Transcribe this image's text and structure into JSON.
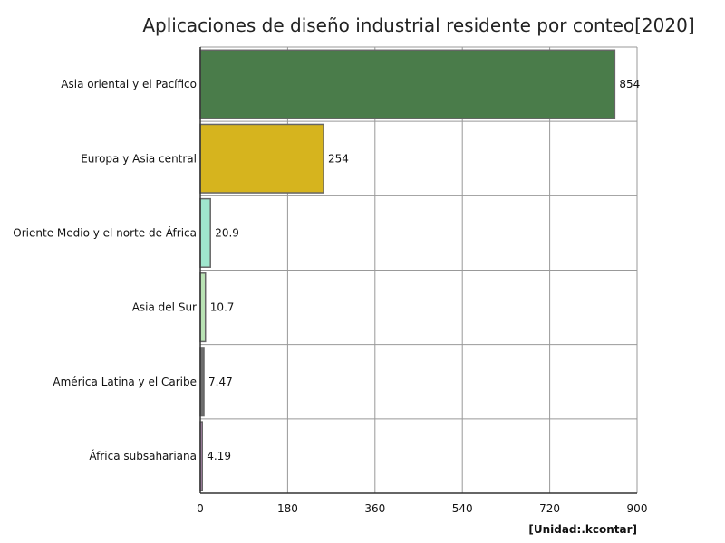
{
  "chart_data": {
    "type": "bar",
    "orientation": "horizontal",
    "title": "Aplicaciones de diseño industrial residente por conteo[2020]",
    "unit_label": "[Unidad:.kcontar]",
    "categories": [
      "Asia oriental y el Pacífico",
      "Europa y Asia central",
      "Oriente Medio y el norte de África",
      "Asia del Sur",
      "América Latina y el Caribe",
      "África subsahariana"
    ],
    "values": [
      854,
      254,
      20.9,
      10.7,
      7.47,
      4.19
    ],
    "value_labels": [
      "854",
      "254",
      "20.9",
      "10.7",
      "7.47",
      "4.19"
    ],
    "colors": [
      "#4a7c4a",
      "#d6b41e",
      "#9fe6cd",
      "#b9e3b4",
      "#6e6e6e",
      "#c98fc9"
    ],
    "xlim": [
      0,
      900
    ],
    "xticks": [
      0,
      180,
      360,
      540,
      720,
      900
    ],
    "grid": true
  }
}
